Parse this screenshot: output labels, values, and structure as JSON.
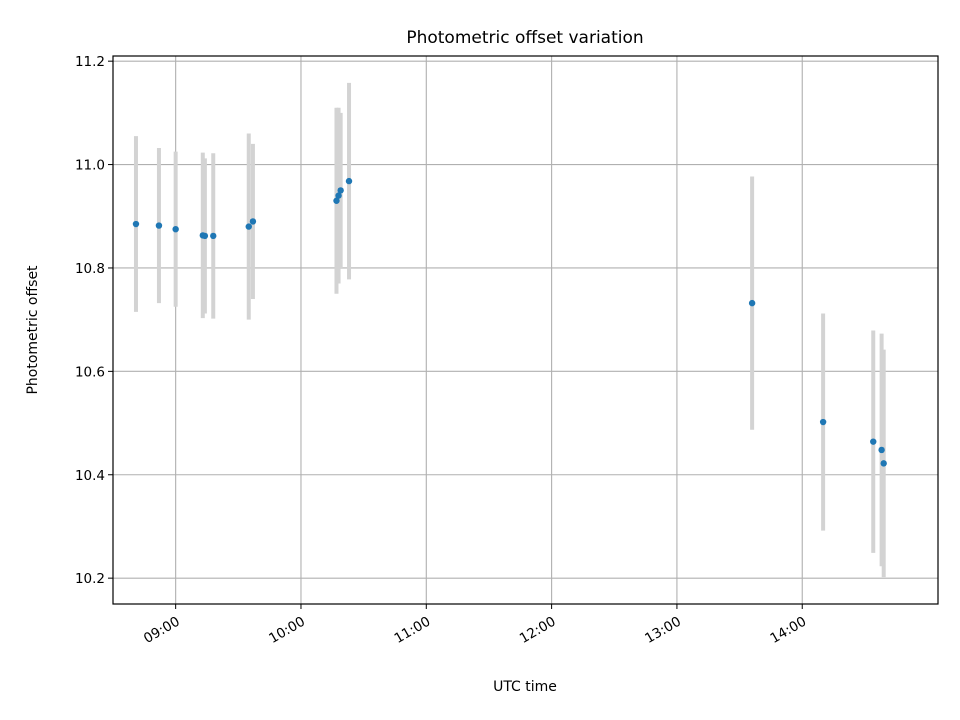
{
  "chart_data": {
    "type": "scatter",
    "title": "Photometric offset variation",
    "xlabel": "UTC time",
    "ylabel": "Photometric offset",
    "xlim": [
      "08:30",
      "15:05"
    ],
    "ylim": [
      10.15,
      11.21
    ],
    "x_ticks": [
      "09:00",
      "10:00",
      "11:00",
      "12:00",
      "13:00",
      "14:00"
    ],
    "y_ticks": [
      "10.2",
      "10.4",
      "10.6",
      "10.8",
      "11.0",
      "11.2"
    ],
    "grid": true,
    "colors": {
      "point": "#1f77b4",
      "errorbar": "#d3d3d3",
      "grid": "#b0b0b0"
    },
    "points": [
      {
        "x": "08:41",
        "y": 10.885,
        "err": 0.17
      },
      {
        "x": "08:52",
        "y": 10.882,
        "err": 0.15
      },
      {
        "x": "09:00",
        "y": 10.875,
        "err": 0.15
      },
      {
        "x": "09:13",
        "y": 10.863,
        "err": 0.16
      },
      {
        "x": "09:14",
        "y": 10.862,
        "err": 0.15
      },
      {
        "x": "09:18",
        "y": 10.862,
        "err": 0.16
      },
      {
        "x": "09:35",
        "y": 10.88,
        "err": 0.18
      },
      {
        "x": "09:37",
        "y": 10.89,
        "err": 0.15
      },
      {
        "x": "10:17",
        "y": 10.93,
        "err": 0.18
      },
      {
        "x": "10:18",
        "y": 10.94,
        "err": 0.17
      },
      {
        "x": "10:19",
        "y": 10.95,
        "err": 0.15
      },
      {
        "x": "10:23",
        "y": 10.968,
        "err": 0.19
      },
      {
        "x": "13:36",
        "y": 10.732,
        "err": 0.245
      },
      {
        "x": "14:10",
        "y": 10.502,
        "err": 0.21
      },
      {
        "x": "14:34",
        "y": 10.464,
        "err": 0.215
      },
      {
        "x": "14:38",
        "y": 10.448,
        "err": 0.225
      },
      {
        "x": "14:39",
        "y": 10.422,
        "err": 0.22
      }
    ]
  }
}
